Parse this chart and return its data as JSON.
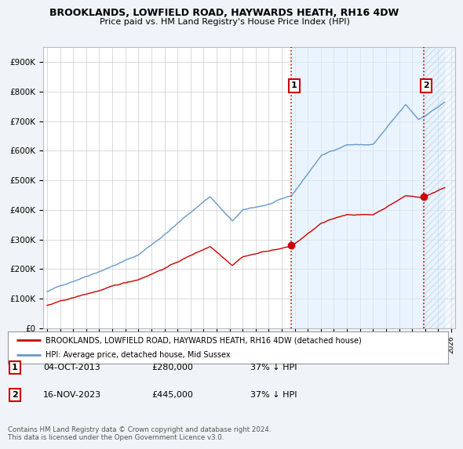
{
  "title": "BROOKLANDS, LOWFIELD ROAD, HAYWARDS HEATH, RH16 4DW",
  "subtitle": "Price paid vs. HM Land Registry's House Price Index (HPI)",
  "ylabel_ticks": [
    "£0",
    "£100K",
    "£200K",
    "£300K",
    "£400K",
    "£500K",
    "£600K",
    "£700K",
    "£800K",
    "£900K"
  ],
  "ytick_values": [
    0,
    100000,
    200000,
    300000,
    400000,
    500000,
    600000,
    700000,
    800000,
    900000
  ],
  "ylim": [
    0,
    950000
  ],
  "xlim_start": 1994.7,
  "xlim_end": 2026.3,
  "red_line_color": "#cc0000",
  "blue_line_color": "#6699cc",
  "blue_fill_color": "#ddeeff",
  "purchase1_x": 2013.75,
  "purchase1_y": 280000,
  "purchase1_label": "1",
  "purchase2_x": 2023.88,
  "purchase2_y": 445000,
  "purchase2_label": "2",
  "vline_color": "#cc0000",
  "vline_style": ":",
  "legend_line1": "BROOKLANDS, LOWFIELD ROAD, HAYWARDS HEATH, RH16 4DW (detached house)",
  "legend_line2": "HPI: Average price, detached house, Mid Sussex",
  "table_rows": [
    {
      "num": "1",
      "date": "04-OCT-2013",
      "price": "£280,000",
      "hpi": "37% ↓ HPI"
    },
    {
      "num": "2",
      "date": "16-NOV-2023",
      "price": "£445,000",
      "hpi": "37% ↓ HPI"
    }
  ],
  "footnote": "Contains HM Land Registry data © Crown copyright and database right 2024.\nThis data is licensed under the Open Government Licence v3.0.",
  "background_color": "#f0f4f8",
  "plot_bg_color": "#ffffff"
}
